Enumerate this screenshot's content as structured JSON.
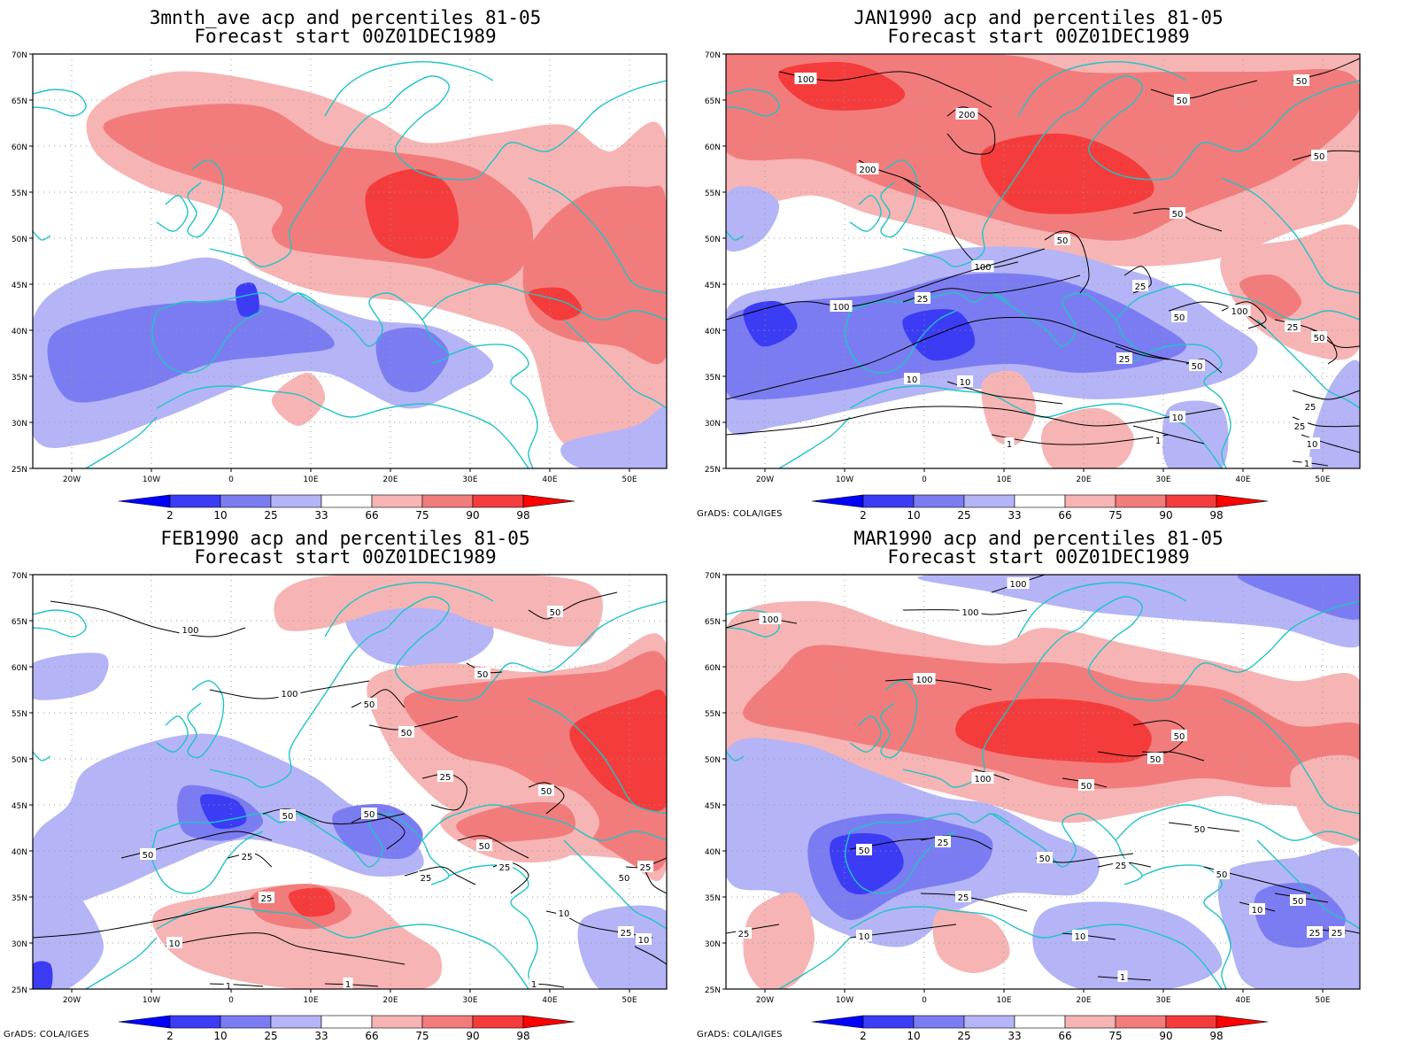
{
  "credit": "GrADS: COLA/IGES",
  "colors": {
    "p2": "#0000ff",
    "p10": "#3c3cf5",
    "p25": "#7c7cf2",
    "p33": "#b4b4f7",
    "mid": "#ffffff",
    "p66": "#f7b4b4",
    "p75": "#f27c7c",
    "p90": "#f53c3c",
    "p98": "#ff0000",
    "coast": "#20c4c4",
    "contour": "#000000"
  },
  "colorbar": [
    "2",
    "10",
    "25",
    "33",
    "66",
    "75",
    "90",
    "98"
  ],
  "axes": {
    "lat": [
      "70N",
      "65N",
      "60N",
      "55N",
      "50N",
      "45N",
      "40N",
      "35N",
      "30N",
      "25N"
    ],
    "lon": [
      "20W",
      "10W",
      "0",
      "10E",
      "20E",
      "30E",
      "40E",
      "50E"
    ]
  },
  "panels": [
    {
      "title_line1": "3mnth_ave acp and percentiles 81-05",
      "title_line2": "Forecast start 00Z01DEC1989",
      "credit_shown": false,
      "contour_labels": []
    },
    {
      "title_line1": "JAN1990 acp and percentiles 81-05",
      "title_line2": "Forecast start 00Z01DEC1989",
      "credit_shown": true,
      "contour_labels": [
        "100",
        "200",
        "200",
        "50",
        "50",
        "50",
        "50",
        "100",
        "100",
        "50",
        "25",
        "25",
        "50",
        "100",
        "25",
        "50",
        "10",
        "10",
        "1",
        "10",
        "25",
        "1",
        "25",
        "50",
        "25",
        "10",
        "1"
      ]
    },
    {
      "title_line1": "FEB1990 acp and percentiles 81-05",
      "title_line2": "Forecast start 00Z01DEC1989",
      "credit_shown": true,
      "contour_labels": [
        "100",
        "50",
        "50",
        "100",
        "50",
        "50",
        "25",
        "50",
        "50",
        "50",
        "50",
        "25",
        "50",
        "25",
        "25",
        "10",
        "10",
        "25",
        "25",
        "10",
        "1",
        "1",
        "50",
        "25",
        "1"
      ]
    },
    {
      "title_line1": "MAR1990 acp and percentiles 81-05",
      "title_line2": "Forecast start 00Z01DEC1989",
      "credit_shown": true,
      "contour_labels": [
        "100",
        "100",
        "100",
        "100",
        "50",
        "50",
        "100",
        "50",
        "50",
        "25",
        "50",
        "50",
        "25",
        "50",
        "25",
        "10",
        "10",
        "50",
        "10",
        "25",
        "25",
        "25",
        "1"
      ]
    }
  ]
}
